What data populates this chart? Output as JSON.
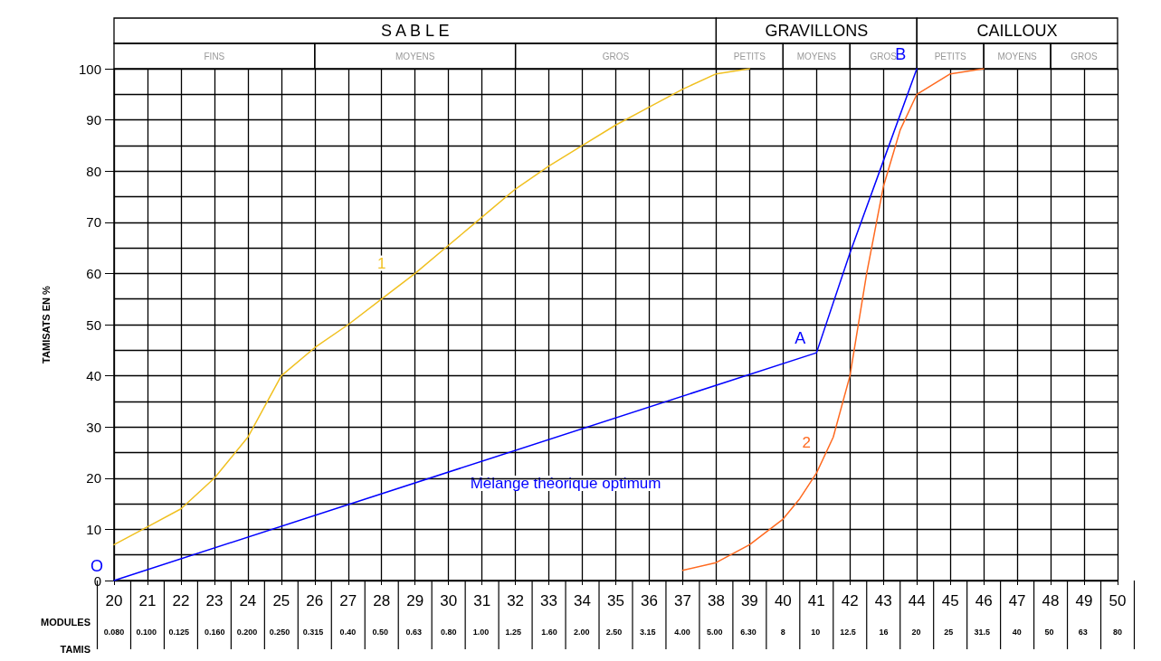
{
  "chart_data": {
    "type": "line",
    "xlabel": "MODULES",
    "ylabel": "TAMISATS EN %",
    "x2label": "TAMIS",
    "xlim": [
      20,
      50
    ],
    "xticks": [
      20,
      21,
      22,
      23,
      24,
      25,
      26,
      27,
      28,
      29,
      30,
      31,
      32,
      33,
      34,
      35,
      36,
      37,
      38,
      39,
      40,
      41,
      42,
      43,
      44,
      45,
      46,
      47,
      48,
      49,
      50
    ],
    "log": "x2",
    "x2lim": [
      0.08,
      80
    ],
    "x2ticks": [
      {
        "value": 0.08,
        "label": "0.080"
      },
      {
        "value": 0.1,
        "label": "0.100"
      },
      0.125,
      {
        "value": 0.16,
        "label": "0.160"
      },
      {
        "value": 0.2,
        "label": "0.200"
      },
      {
        "value": 0.25,
        "label": "0.250"
      },
      0.315,
      {
        "value": 0.4,
        "label": "0.40"
      },
      {
        "value": 0.5,
        "label": "0.50"
      },
      0.63,
      {
        "value": 0.8,
        "label": "0.80"
      },
      {
        "value": 1,
        "label": "1.00"
      },
      1.25,
      {
        "value": 1.6,
        "label": "1.60"
      },
      {
        "value": 2,
        "label": "2.00"
      },
      {
        "value": 2.5,
        "label": "2.50"
      },
      3.15,
      {
        "value": 4,
        "label": "4.00"
      },
      {
        "value": 5,
        "label": "5.00"
      },
      {
        "value": 6.3,
        "label": "6.30"
      },
      8,
      10,
      12.5,
      16,
      20,
      25,
      31.5,
      40,
      50,
      63,
      80
    ],
    "ylim": [
      0,
      100
    ],
    "yticks": [
      0,
      {
        "value": 5,
        "label": null
      },
      10,
      {
        "value": 15,
        "label": null
      },
      20,
      {
        "value": 25,
        "label": null
      },
      30,
      {
        "value": 35,
        "label": null
      },
      40,
      {
        "value": 45,
        "label": null
      },
      50,
      {
        "value": 55,
        "label": null
      },
      60,
      {
        "value": 65,
        "label": null
      },
      70,
      {
        "value": 75,
        "label": null
      },
      80,
      {
        "value": 85,
        "label": null
      },
      90,
      {
        "value": 95,
        "label": null
      },
      100
    ],
    "grid": true,
    "marker": "none",
    "line_style": "solid",
    "series": [
      {
        "name": "1",
        "color": "#f0c020",
        "x": [
          20,
          21,
          22,
          23,
          24,
          25,
          26,
          27,
          28,
          29,
          30,
          31,
          32,
          33,
          34,
          35,
          36,
          37,
          38,
          39
        ],
        "values": [
          7,
          10.5,
          14,
          20,
          28,
          40,
          45.5,
          50,
          55,
          60,
          65.5,
          71,
          76.5,
          81,
          85,
          89,
          92.5,
          96,
          99,
          100
        ]
      },
      {
        "name": "Mélange théorique optimum",
        "color": "#0000ff",
        "x": [
          20,
          41,
          42,
          43,
          44
        ],
        "values": [
          0,
          44.5,
          64,
          82,
          100
        ]
      },
      {
        "name": "2",
        "color": "#ff6a20",
        "x": [
          37,
          38,
          39,
          40,
          40.5,
          41,
          41.5,
          42,
          42.5,
          43,
          43.5,
          44,
          45,
          46
        ],
        "values": [
          2,
          3.5,
          7,
          12,
          16,
          21,
          28,
          40,
          60,
          77,
          88,
          95,
          99,
          100
        ]
      }
    ],
    "annotations": [
      "S A B L E",
      "GRAVILLONS",
      "CAILLOUX",
      "FINS",
      "MOYENS",
      "GROS",
      "PETITS",
      "MOYENS",
      "GROS",
      "PETITS",
      "MOYENS",
      "GROS",
      {
        "text": "O",
        "x": 20,
        "y": 0
      },
      {
        "text": "A",
        "x": 41,
        "y": 44.5
      },
      {
        "text": "B",
        "x": 44,
        "y": 100
      }
    ]
  }
}
